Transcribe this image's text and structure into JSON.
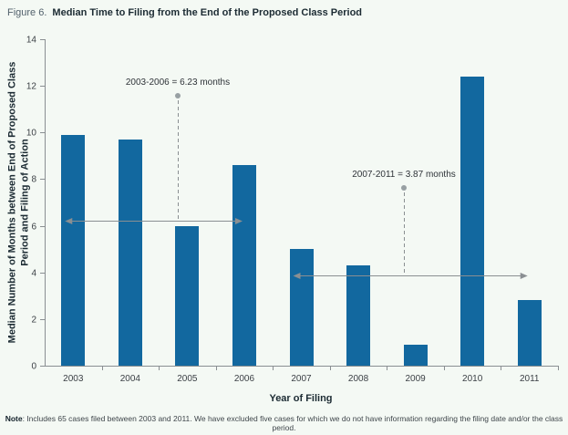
{
  "page": {
    "background": "#f4f9f4"
  },
  "header": {
    "figure_label": "Figure 6.",
    "title": "Median Time to Filing from the End of the Proposed Class Period"
  },
  "chart_data": {
    "type": "bar",
    "title": "Median Time to Filing from the End of the Proposed Class Period",
    "categories": [
      "2003",
      "2004",
      "2005",
      "2006",
      "2007",
      "2008",
      "2009",
      "2010",
      "2011"
    ],
    "values": [
      9.9,
      9.7,
      6.0,
      8.6,
      5.0,
      4.3,
      0.9,
      12.4,
      2.8
    ],
    "xlabel": "Year of Filing",
    "ylabel": "Median Number of Months between End of Proposed Class Period and Filing of Action",
    "ylim": [
      0,
      14
    ],
    "yticks": [
      0,
      2,
      4,
      6,
      8,
      10,
      12,
      14
    ],
    "grid": false,
    "legend": null,
    "bar_color": "#12689f",
    "axis_color": "#8a8f92",
    "annotation_color": "#8a8f92",
    "annotations": [
      {
        "label": "2003-2006 = 6.23 months",
        "value": 6.23,
        "from_year": "2003",
        "to_year": "2006"
      },
      {
        "label": "2007-2011 = 3.87 months",
        "value": 3.87,
        "from_year": "2007",
        "to_year": "2011"
      }
    ]
  },
  "note": {
    "label": "Note",
    "text": ": Includes 65 cases filed between 2003 and 2011. We have excluded five cases for which we do not have information regarding the filing date and/or the class period."
  }
}
